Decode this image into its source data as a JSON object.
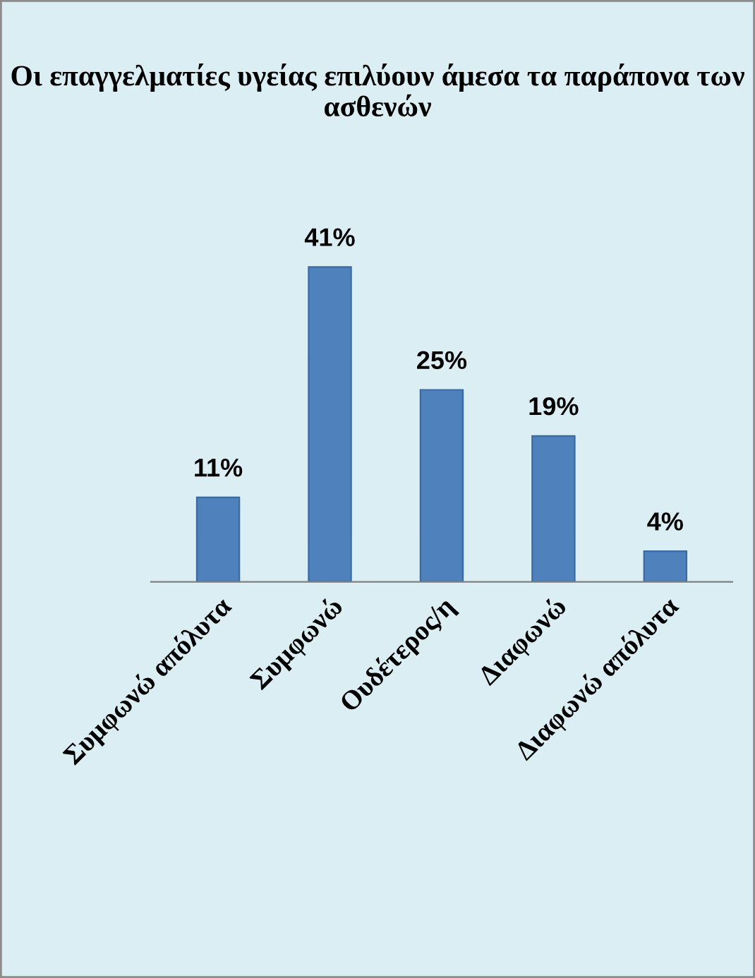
{
  "chart_data": {
    "type": "bar",
    "title": "Οι επαγγελματίες υγείας επιλύουν άμεσα τα παράπονα των ασθενών",
    "categories": [
      "Συμφωνώ απόλυτα",
      "Συμφωνώ",
      "Ουδέτερος/η",
      "Διαφωνώ",
      "Διαφωνώ απόλυτα"
    ],
    "values": [
      11,
      41,
      25,
      19,
      4
    ],
    "value_labels": [
      "11%",
      "41%",
      "25%",
      "19%",
      "4%"
    ],
    "color": "#4f81bd",
    "grid": false,
    "legend": false
  }
}
